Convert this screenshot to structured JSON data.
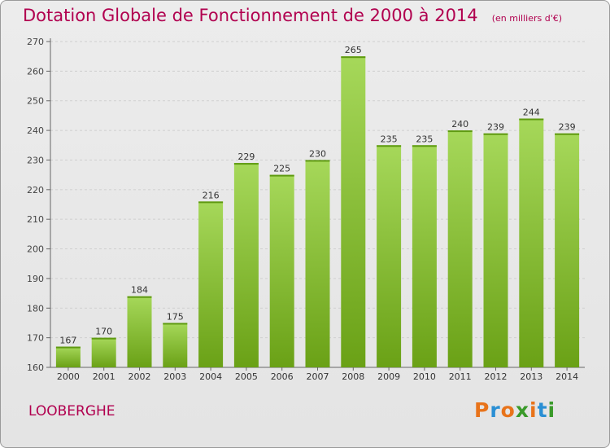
{
  "header": {
    "title": "Dotation Globale de Fonctionnement de 2000 à 2014",
    "subtitle": "(en milliers d'€)"
  },
  "footer": {
    "commune": "LOOBERGHE",
    "logo": "Proxiti"
  },
  "colors": {
    "title": "#b1004f",
    "bar_light": "#a6d85a",
    "bar_dark": "#6aa116"
  },
  "chart_data": {
    "type": "bar",
    "title": "Dotation Globale de Fonctionnement de 2000 à 2014",
    "subtitle": "(en milliers d'€)",
    "categories": [
      "2000",
      "2001",
      "2002",
      "2003",
      "2004",
      "2005",
      "2006",
      "2007",
      "2008",
      "2009",
      "2010",
      "2011",
      "2012",
      "2013",
      "2014"
    ],
    "values": [
      167,
      170,
      184,
      175,
      216,
      229,
      225,
      230,
      265,
      235,
      235,
      240,
      239,
      244,
      239
    ],
    "ylim": [
      160,
      270
    ],
    "yticks": [
      160,
      170,
      180,
      190,
      200,
      210,
      220,
      230,
      240,
      250,
      260,
      270
    ],
    "grid": true,
    "data_labels": true
  }
}
